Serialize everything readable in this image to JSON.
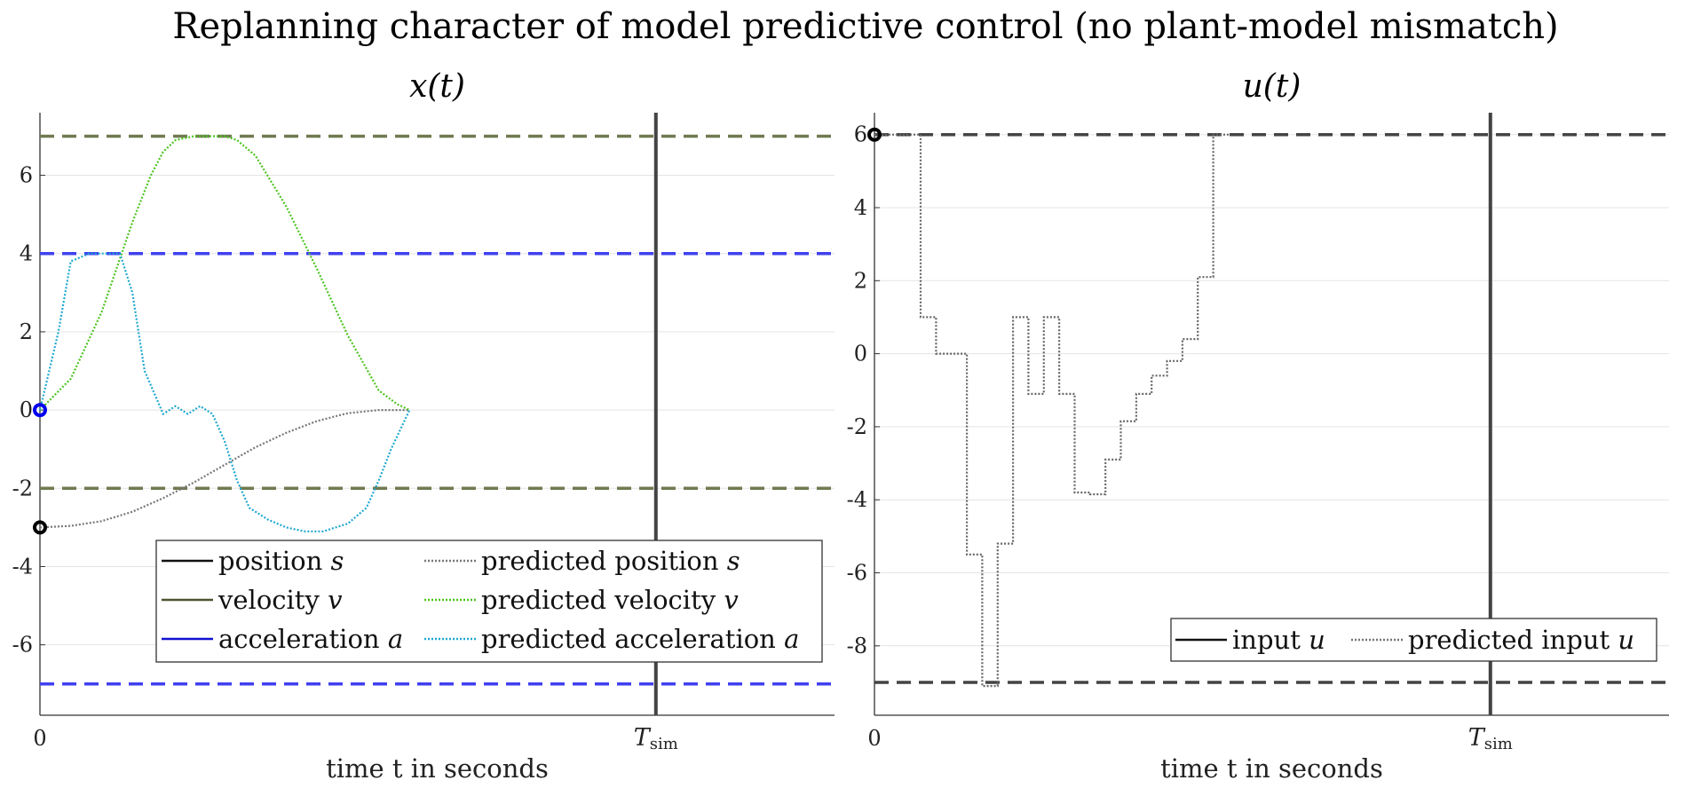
{
  "title": "Replanning character of model predictive control (no plant-model mismatch)",
  "chart_data": [
    {
      "type": "line",
      "title": "x(t)",
      "xlabel": "time t in seconds",
      "xticks": [
        {
          "pos": 0,
          "label": "0"
        },
        {
          "pos": 1,
          "label": "T_sim"
        }
      ],
      "x_tick_main": "T",
      "x_tick_sub": "sim",
      "xlim": [
        0,
        1.29
      ],
      "ylim": [
        -7.8,
        7.6
      ],
      "yticks": [
        6,
        4,
        2,
        0,
        -2,
        -4,
        -6
      ],
      "ytick_labels": [
        "6",
        "4",
        "2",
        "0",
        "-2",
        "-4",
        "-6"
      ],
      "grid": true,
      "constraints": [
        {
          "y": 7,
          "color": "#707a50",
          "style": "dashed"
        },
        {
          "y": -2,
          "color": "#707a50",
          "style": "dashed"
        },
        {
          "y": 4,
          "color": "#4040f0",
          "style": "dashed"
        },
        {
          "y": -7,
          "color": "#4040f0",
          "style": "dashed"
        }
      ],
      "vline": {
        "x": 1,
        "color": "#444444"
      },
      "series": [
        {
          "name": "predicted position s",
          "color": "#777777",
          "style": "dotted",
          "x": [
            0,
            0.05,
            0.1,
            0.15,
            0.2,
            0.25,
            0.3,
            0.35,
            0.4,
            0.45,
            0.5,
            0.55,
            0.6
          ],
          "y": [
            -3.0,
            -2.96,
            -2.84,
            -2.6,
            -2.25,
            -1.85,
            -1.4,
            -0.95,
            -0.58,
            -0.28,
            -0.08,
            0.0,
            0.0
          ]
        },
        {
          "name": "predicted velocity v",
          "color": "#4cc420",
          "style": "dotted",
          "x": [
            0,
            0.05,
            0.1,
            0.15,
            0.18,
            0.2,
            0.22,
            0.25,
            0.28,
            0.3,
            0.32,
            0.35,
            0.4,
            0.45,
            0.5,
            0.55,
            0.58,
            0.6
          ],
          "y": [
            0,
            0.8,
            2.5,
            4.8,
            6.0,
            6.6,
            6.9,
            7.0,
            7.0,
            7.0,
            6.9,
            6.5,
            5.2,
            3.6,
            1.9,
            0.5,
            0.15,
            0
          ]
        },
        {
          "name": "predicted acceleration a",
          "color": "#20a8d0",
          "style": "dotted",
          "x": [
            0,
            0.03,
            0.05,
            0.08,
            0.1,
            0.13,
            0.15,
            0.17,
            0.2,
            0.22,
            0.24,
            0.26,
            0.28,
            0.3,
            0.32,
            0.34,
            0.37,
            0.4,
            0.43,
            0.46,
            0.5,
            0.53,
            0.55,
            0.57,
            0.6
          ],
          "y": [
            0,
            2.0,
            3.8,
            4.0,
            4.0,
            4.0,
            3.0,
            1.0,
            -0.1,
            0.1,
            -0.1,
            0.1,
            -0.1,
            -0.8,
            -1.8,
            -2.5,
            -2.8,
            -3.0,
            -3.1,
            -3.1,
            -2.9,
            -2.5,
            -1.8,
            -1.0,
            0
          ]
        }
      ],
      "initial_markers": [
        {
          "x": 0,
          "y": 0,
          "color": "#0000ee"
        },
        {
          "x": 0,
          "y": -3,
          "color": "#000000"
        }
      ],
      "legend": {
        "position": "bottom-center",
        "entries": [
          {
            "label": "position",
            "sym": "s",
            "color": "#111111",
            "style": "solid"
          },
          {
            "label": "predicted position",
            "sym": "s",
            "color": "#777777",
            "style": "dotted"
          },
          {
            "label": "velocity",
            "sym": "v",
            "color": "#4a5530",
            "style": "solid"
          },
          {
            "label": "predicted velocity",
            "sym": "v",
            "color": "#4cc420",
            "style": "dotted"
          },
          {
            "label": "acceleration",
            "sym": "a",
            "color": "#1010d0",
            "style": "solid"
          },
          {
            "label": "predicted acceleration",
            "sym": "a",
            "color": "#20a8d0",
            "style": "dotted"
          }
        ]
      }
    },
    {
      "type": "line",
      "title": "u(t)",
      "xlabel": "time t in seconds",
      "xticks": [
        {
          "pos": 0,
          "label": "0"
        },
        {
          "pos": 1,
          "label": "T_sim"
        }
      ],
      "x_tick_main": "T",
      "x_tick_sub": "sim",
      "xlim": [
        0,
        1.29
      ],
      "ylim": [
        -9.9,
        6.6
      ],
      "yticks": [
        6,
        4,
        2,
        0,
        -2,
        -4,
        -6,
        -8
      ],
      "ytick_labels": [
        "6",
        "4",
        "2",
        "0",
        "-2",
        "-4",
        "-6",
        "-8"
      ],
      "grid": true,
      "constraints": [
        {
          "y": 6,
          "color": "#444444",
          "style": "dashed"
        },
        {
          "y": -9,
          "color": "#444444",
          "style": "dashed"
        }
      ],
      "vline": {
        "x": 1,
        "color": "#444444"
      },
      "series": [
        {
          "name": "predicted input u",
          "color": "#666666",
          "style": "dotted",
          "step": true,
          "x": [
            0,
            0.075,
            0.1,
            0.15,
            0.175,
            0.2,
            0.225,
            0.25,
            0.275,
            0.3,
            0.325,
            0.35,
            0.375,
            0.4,
            0.425,
            0.45,
            0.475,
            0.5,
            0.525,
            0.55,
            0.575
          ],
          "y": [
            6,
            1.0,
            0,
            -5.5,
            -9.1,
            -5.2,
            1.0,
            -1.1,
            1.0,
            -1.1,
            -3.8,
            -3.85,
            -2.9,
            -1.85,
            -1.1,
            -0.6,
            -0.2,
            0.4,
            2.1,
            6.0,
            6.0
          ]
        }
      ],
      "initial_markers": [
        {
          "x": 0,
          "y": 6,
          "color": "#000000"
        }
      ],
      "legend": {
        "position": "bottom-right",
        "entries": [
          {
            "label": "input",
            "sym": "u",
            "color": "#111111",
            "style": "solid"
          },
          {
            "label": "predicted input",
            "sym": "u",
            "color": "#777777",
            "style": "dotted"
          }
        ]
      }
    }
  ]
}
